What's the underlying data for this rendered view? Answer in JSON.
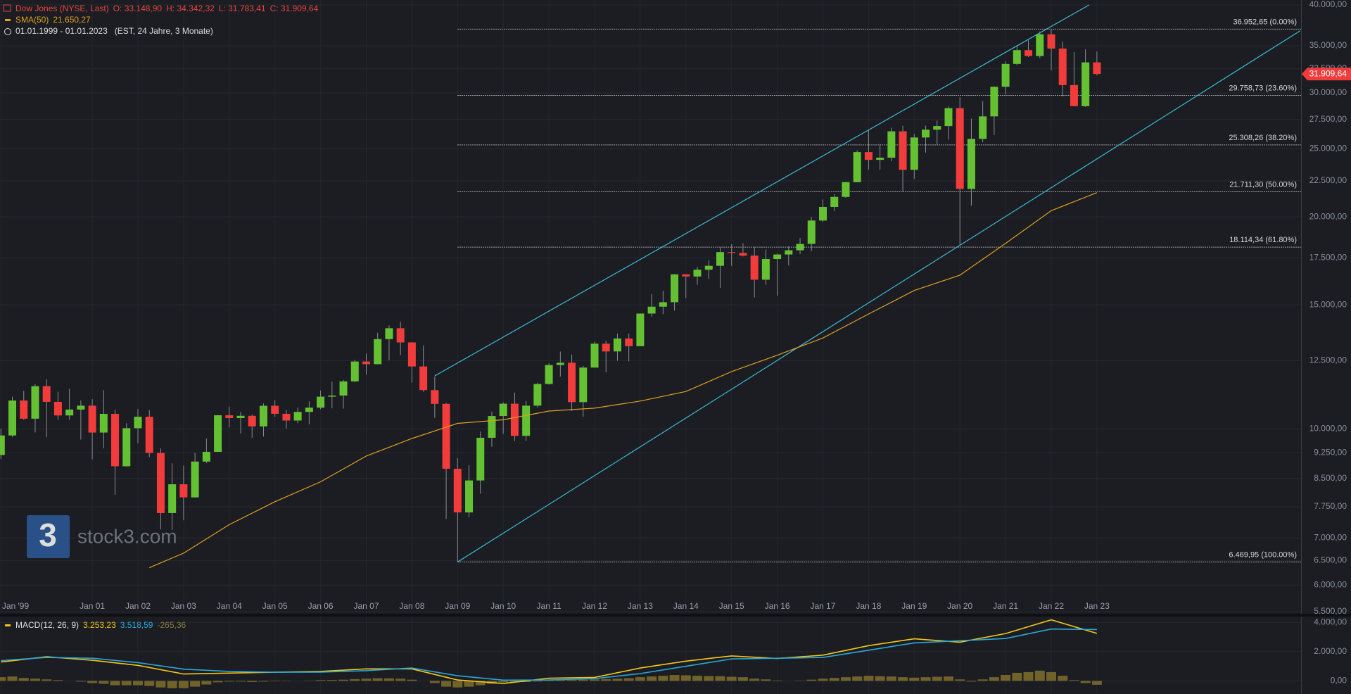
{
  "logo": {
    "mark": "3",
    "text": "stock3.com"
  },
  "chart_data": [
    {
      "type": "candlestick",
      "title": "Dow Jones (NYSE, Last)",
      "ohlc_labels": [
        "O: 33.148,90",
        "H: 34.342,32",
        "L: 31.783,41",
        "C: 31.909,64"
      ],
      "date_range": "01.01.1999 - 01.01.2023",
      "date_range_note": "(EST, 24 Jahre, 3 Monate)",
      "up_color": "#64c232",
      "down_color": "#f23b3b",
      "price_label": "31.909,64",
      "x": [
        1999,
        1999.25,
        1999.5,
        1999.75,
        2000,
        2000.25,
        2000.5,
        2000.75,
        2001,
        2001.25,
        2001.5,
        2001.75,
        2002,
        2002.25,
        2002.5,
        2002.75,
        2003,
        2003.25,
        2003.5,
        2003.75,
        2004,
        2004.25,
        2004.5,
        2004.75,
        2005,
        2005.25,
        2005.5,
        2005.75,
        2006,
        2006.25,
        2006.5,
        2006.75,
        2007,
        2007.25,
        2007.5,
        2007.75,
        2008,
        2008.25,
        2008.5,
        2008.75,
        2009,
        2009.25,
        2009.5,
        2009.75,
        2010,
        2010.25,
        2010.5,
        2010.75,
        2011,
        2011.25,
        2011.5,
        2011.75,
        2012,
        2012.25,
        2012.5,
        2012.75,
        2013,
        2013.25,
        2013.5,
        2013.75,
        2014,
        2014.25,
        2014.5,
        2014.75,
        2015,
        2015.25,
        2015.5,
        2015.75,
        2016,
        2016.25,
        2016.5,
        2016.75,
        2017,
        2017.25,
        2017.5,
        2017.75,
        2018,
        2018.25,
        2018.5,
        2018.75,
        2019,
        2019.25,
        2019.5,
        2019.75,
        2020,
        2020.25,
        2020.5,
        2020.75,
        2021,
        2021.25,
        2021.5,
        2021.75,
        2022,
        2022.25,
        2022.5,
        2022.75,
        2023
      ],
      "open": [
        9181,
        9786,
        10970,
        10337,
        11497,
        10922,
        10448,
        10651,
        10787,
        9879,
        10502,
        8848,
        10022,
        10404,
        9243,
        7592,
        8342,
        7992,
        8985,
        9275,
        10454,
        10358,
        10435,
        10080,
        10783,
        10504,
        10275,
        10569,
        10718,
        11109,
        11150,
        11679,
        12463,
        12354,
        13409,
        13896,
        13265,
        12263,
        11350,
        10851,
        8776,
        7609,
        8447,
        9712,
        10428,
        10857,
        9774,
        10788,
        11578,
        12320,
        12414,
        10913,
        12218,
        13212,
        12880,
        13437,
        13104,
        14579,
        14910,
        15130,
        16577,
        16458,
        16827,
        17043,
        17823,
        17776,
        17620,
        16285,
        17425,
        17685,
        17930,
        18308,
        19763,
        20663,
        21350,
        22405,
        24719,
        24103,
        24271,
        26458,
        23327,
        25929,
        26600,
        26917,
        28538,
        21917,
        25813,
        27782,
        30606,
        32982,
        34503,
        33844,
        36338,
        34678,
        30775,
        28726,
        33148.9
      ],
      "high": [
        10007,
        11107,
        11326,
        11568,
        11750,
        11287,
        11401,
        10977,
        11019,
        11350,
        10650,
        10184,
        10673,
        10635,
        9379,
        8932,
        8869,
        9247,
        9686,
        10462,
        10753,
        10570,
        10480,
        10868,
        10984,
        10635,
        10720,
        10940,
        11334,
        11670,
        11727,
        12529,
        12786,
        13692,
        14022,
        14198,
        13279,
        13136,
        11867,
        10883,
        9088,
        8878,
        9917,
        10580,
        10907,
        11258,
        10948,
        11625,
        12391,
        12876,
        12753,
        12284,
        13297,
        13338,
        13653,
        13661,
        14585,
        15542,
        15709,
        16588,
        16588,
        16978,
        17350,
        18103,
        18289,
        18351,
        18137,
        17977,
        17750,
        18168,
        18668,
        19988,
        21169,
        21535,
        22419,
        24876,
        26617,
        25399,
        26770,
        26952,
        26241,
        26952,
        27398,
        28702,
        29568,
        27581,
        29199,
        30637,
        33259,
        35091,
        35631,
        36679,
        36952.65,
        35492,
        34281,
        34595,
        34342.32
      ],
      "low": [
        9063,
        9732,
        10300,
        9884,
        9731,
        10300,
        10300,
        9654,
        9047,
        9389,
        8062,
        8836,
        9529,
        9120,
        7197,
        7181,
        7416,
        7992,
        8936,
        9275,
        10048,
        9852,
        9708,
        9750,
        10404,
        10012,
        10184,
        10156,
        10661,
        10699,
        10683,
        11653,
        11939,
        12354,
        12518,
        12725,
        11634,
        11288,
        10365,
        7449,
        6469.95,
        7491,
        8087,
        9430,
        9835,
        9614,
        9614,
        10711,
        11555,
        11862,
        10597,
        10404,
        12218,
        12035,
        12492,
        12471,
        13104,
        14434,
        14551,
        14719,
        15340,
        16015,
        16333,
        15855,
        17037,
        17576,
        15370,
        16013,
        15451,
        17063,
        17713,
        17884,
        19677,
        20379,
        21279,
        22405,
        23344,
        23344,
        23997,
        21713,
        22638,
        24680,
        25339,
        25743,
        18213,
        20735,
        25523,
        26143,
        29856,
        32850,
        33741,
        33613,
        32272,
        29653,
        28715,
        28660,
        31783.41
      ],
      "close": [
        9786,
        10970,
        10337,
        11497,
        10922,
        10448,
        10651,
        10787,
        9879,
        10502,
        8848,
        10022,
        10404,
        9243,
        7592,
        8342,
        7992,
        8985,
        9275,
        10454,
        10358,
        10435,
        10080,
        10783,
        10504,
        10275,
        10569,
        10718,
        11109,
        11150,
        11679,
        12463,
        12354,
        13409,
        13896,
        13265,
        12263,
        11350,
        10851,
        8776,
        7609,
        8447,
        9712,
        10428,
        10857,
        9774,
        10788,
        11578,
        12320,
        12414,
        10913,
        12218,
        13212,
        12880,
        13437,
        13104,
        14579,
        14910,
        15130,
        16577,
        16458,
        16827,
        17043,
        17823,
        17776,
        17620,
        16285,
        17425,
        17685,
        17930,
        18308,
        19763,
        20663,
        21350,
        22405,
        24719,
        24103,
        24271,
        26458,
        23327,
        25929,
        26600,
        26917,
        28538,
        21917,
        25813,
        27782,
        30606,
        32982,
        34503,
        33844,
        36338,
        34678,
        30775,
        28726,
        33147,
        31909.64
      ],
      "series": [
        {
          "name": "SMA(50)",
          "last_label": "21.650,27",
          "color": "#e0a020",
          "x": [
            2002.25,
            2003,
            2004,
            2005,
            2006,
            2007,
            2008,
            2009,
            2010,
            2011,
            2012,
            2013,
            2014,
            2015,
            2016,
            2017,
            2018,
            2019,
            2020,
            2021,
            2022,
            2023
          ],
          "values": [
            6350,
            6660,
            7310,
            7880,
            8410,
            9150,
            9690,
            10180,
            10300,
            10600,
            10700,
            10950,
            11300,
            12060,
            12720,
            13460,
            14560,
            15720,
            16530,
            18340,
            20410,
            21650.27
          ]
        }
      ],
      "channel": {
        "color": "#3fb8d4",
        "lines": [
          [
            [
              2008.5,
              11890
            ],
            [
              2022.83,
              40000
            ]
          ],
          [
            [
              2009,
              6469.95
            ],
            [
              2027.45,
              36760
            ]
          ]
        ]
      },
      "fib": {
        "from": 2009,
        "levels": [
          {
            "value": 36952.65,
            "label": "36.952,65 (0.00%)"
          },
          {
            "value": 29758.73,
            "label": "29.758,73 (23.60%)"
          },
          {
            "value": 25308.26,
            "label": "25.308,26 (38.20%)"
          },
          {
            "value": 21711.3,
            "label": "21.711,30 (50.00%)"
          },
          {
            "value": 18114.34,
            "label": "18.114,34 (61.80%)"
          },
          {
            "value": 6469.95,
            "label": "6.469,95 (100.00%)"
          }
        ]
      },
      "xlim": [
        1998.98,
        2027.47
      ],
      "xticks": [
        {
          "value": 1999,
          "label": "Jan '99"
        },
        {
          "value": 2001,
          "label": "Jan 01"
        },
        {
          "value": 2002,
          "label": "Jan 02"
        },
        {
          "value": 2003,
          "label": "Jan 03"
        },
        {
          "value": 2004,
          "label": "Jan 04"
        },
        {
          "value": 2005,
          "label": "Jan 05"
        },
        {
          "value": 2006,
          "label": "Jan 06"
        },
        {
          "value": 2007,
          "label": "Jan 07"
        },
        {
          "value": 2008,
          "label": "Jan 08"
        },
        {
          "value": 2009,
          "label": "Jan 09"
        },
        {
          "value": 2010,
          "label": "Jan 10"
        },
        {
          "value": 2011,
          "label": "Jan 11"
        },
        {
          "value": 2012,
          "label": "Jan 12"
        },
        {
          "value": 2013,
          "label": "Jan 13"
        },
        {
          "value": 2014,
          "label": "Jan 14"
        },
        {
          "value": 2015,
          "label": "Jan 15"
        },
        {
          "value": 2016,
          "label": "Jan 16"
        },
        {
          "value": 2017,
          "label": "Jan 17"
        },
        {
          "value": 2018,
          "label": "Jan 18"
        },
        {
          "value": 2019,
          "label": "Jan 19"
        },
        {
          "value": 2020,
          "label": "Jan 20"
        },
        {
          "value": 2021,
          "label": "Jan 21"
        },
        {
          "value": 2022,
          "label": "Jan 22"
        },
        {
          "value": 2023,
          "label": "Jan 23"
        }
      ],
      "ylim": [
        5500,
        40000
      ],
      "log_y": true,
      "grid": true,
      "yticks": [
        {
          "value": 40000,
          "label": "40.000,00"
        },
        {
          "value": 35000,
          "label": "35.000,00"
        },
        {
          "value": 32500,
          "label": "32.500,00"
        },
        {
          "value": 30000,
          "label": "30.000,00"
        },
        {
          "value": 27500,
          "label": "27.500,00"
        },
        {
          "value": 25000,
          "label": "25.000,00"
        },
        {
          "value": 22500,
          "label": "22.500,00"
        },
        {
          "value": 20000,
          "label": "20.000,00"
        },
        {
          "value": 17500,
          "label": "17.500,00"
        },
        {
          "value": 15000,
          "label": "15.000,00"
        },
        {
          "value": 12500,
          "label": "12.500,00"
        },
        {
          "value": 10000,
          "label": "10.000,00"
        },
        {
          "value": 9250,
          "label": "9.250,00"
        },
        {
          "value": 8500,
          "label": "8.500,00"
        },
        {
          "value": 7750,
          "label": "7.750,00"
        },
        {
          "value": 7000,
          "label": "7.000,00"
        },
        {
          "value": 6500,
          "label": "6.500,00"
        },
        {
          "value": 6000,
          "label": "6.000,00"
        },
        {
          "value": 5500,
          "label": "5.500,00"
        }
      ]
    },
    {
      "type": "macd",
      "ylim": [
        -900,
        4500
      ],
      "grid": true,
      "yticks": [
        {
          "value": 4000,
          "label": "4.000,00"
        },
        {
          "value": 2000,
          "label": "2.000,00"
        },
        {
          "value": 0,
          "label": "0,00"
        }
      ],
      "histogram": {
        "color": "#7a6a2a",
        "last_label": "-265,36",
        "values": [
          250,
          300,
          200,
          150,
          100,
          50,
          0,
          -50,
          -150,
          -200,
          -300,
          -300,
          -300,
          -350,
          -450,
          -500,
          -500,
          -400,
          -250,
          -100,
          -50,
          -50,
          -80,
          -50,
          -30,
          -20,
          0,
          20,
          50,
          60,
          80,
          120,
          150,
          180,
          170,
          150,
          80,
          0,
          -150,
          -400,
          -450,
          -400,
          -300,
          -200,
          -100,
          -100,
          -80,
          -50,
          50,
          80,
          60,
          80,
          100,
          120,
          150,
          180,
          250,
          300,
          350,
          400,
          380,
          350,
          330,
          320,
          280,
          250,
          150,
          100,
          30,
          0,
          20,
          80,
          150,
          200,
          250,
          300,
          350,
          320,
          300,
          250,
          220,
          250,
          280,
          300,
          100,
          -50,
          100,
          250,
          400,
          550,
          600,
          700,
          600,
          350,
          50,
          -150,
          -265.36
        ]
      },
      "series": [
        {
          "name": "MACD(12, 26, 9)",
          "last_label": "3.253,23",
          "color": "#f5c518",
          "x": [
            1999,
            2000,
            2001,
            2002,
            2003,
            2004,
            2005,
            2006,
            2007,
            2008,
            2009,
            2010,
            2011,
            2012,
            2013,
            2014,
            2015,
            2016,
            2017,
            2018,
            2019,
            2020,
            2021,
            2022,
            2023
          ],
          "values": [
            1290,
            1650,
            1410,
            1060,
            470,
            530,
            590,
            650,
            820,
            820,
            60,
            -180,
            180,
            240,
            880,
            1350,
            1710,
            1530,
            1760,
            2410,
            2880,
            2650,
            3240,
            4180,
            3253.23
          ]
        },
        {
          "last_label": "3.518,59",
          "color": "#2aa7d8",
          "x": [
            1999,
            2000,
            2001,
            2002,
            2003,
            2004,
            2005,
            2006,
            2007,
            2008,
            2009,
            2010,
            2011,
            2012,
            2013,
            2014,
            2015,
            2016,
            2017,
            2018,
            2019,
            2020,
            2021,
            2022,
            2023
          ],
          "values": [
            1390,
            1600,
            1550,
            1250,
            800,
            650,
            590,
            600,
            700,
            880,
            350,
            50,
            60,
            150,
            500,
            1000,
            1500,
            1550,
            1600,
            2100,
            2600,
            2750,
            2900,
            3550,
            3518.59
          ]
        }
      ]
    }
  ]
}
